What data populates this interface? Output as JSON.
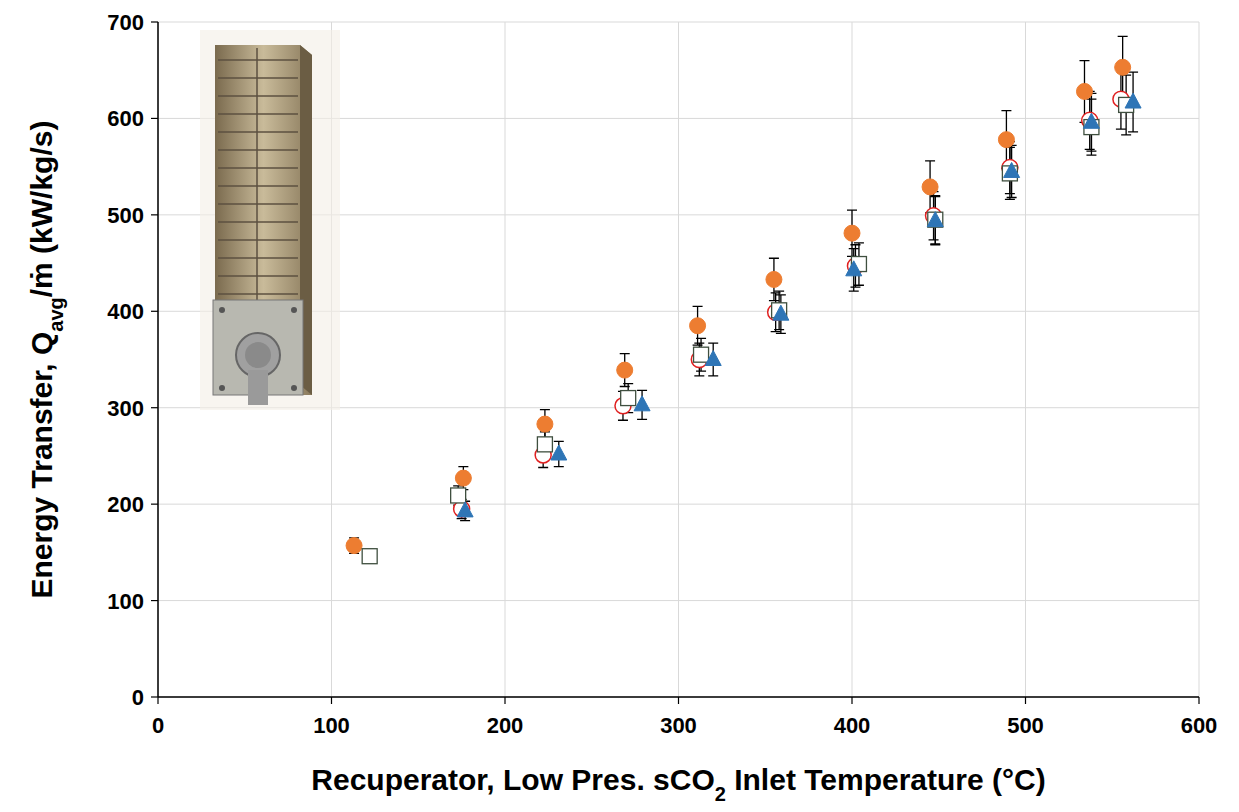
{
  "chart_data": {
    "type": "scatter",
    "xlabel": [
      "Recuperator, Low Pres. sCO",
      "2",
      " Inlet Temperature (°C)"
    ],
    "ylabel": [
      "Energy Transfer, Q",
      "avg",
      "/ṁ (kW/kg/s)"
    ],
    "xlim": [
      0,
      600
    ],
    "xticks": [
      0,
      100,
      200,
      300,
      400,
      500,
      600
    ],
    "ylim": [
      0,
      700
    ],
    "yticks": [
      0,
      100,
      200,
      300,
      400,
      500,
      600,
      700
    ],
    "grid": true,
    "series": [
      {
        "color": "#ed7d31",
        "marker": "circle",
        "x": [
          113,
          176,
          223,
          269,
          311,
          355,
          400,
          445,
          489,
          534,
          556
        ],
        "values": [
          157,
          227,
          283,
          339,
          385,
          433,
          481,
          529,
          578,
          628,
          653
        ],
        "errors": [
          8,
          12,
          15,
          17,
          20,
          22,
          24,
          27,
          30,
          32,
          32
        ]
      },
      {
        "color": "#e02020",
        "marker": "open_circle",
        "x": [
          175,
          222,
          268,
          312,
          356,
          402,
          447,
          491,
          537,
          555
        ],
        "values": [
          195,
          251,
          302,
          350,
          399,
          447,
          499,
          549,
          598,
          620
        ],
        "errors": [
          10,
          13,
          15,
          17,
          20,
          22,
          25,
          27,
          30,
          31
        ]
      },
      {
        "color": "#3f4f3f",
        "marker": "open_square",
        "x": [
          122,
          173,
          223,
          271,
          313,
          358,
          404,
          448,
          491,
          538,
          558
        ],
        "values": [
          146,
          209,
          262,
          310,
          355,
          401,
          449,
          495,
          543,
          591,
          614
        ],
        "errors": [
          7,
          10,
          13,
          15,
          17,
          20,
          22,
          25,
          27,
          29,
          31
        ]
      },
      {
        "color": "#2e75b6",
        "marker": "triangle",
        "x": [
          177,
          231,
          279,
          320,
          359,
          401,
          448,
          492,
          538,
          562
        ],
        "values": [
          193,
          252,
          303,
          350,
          397,
          443,
          494,
          545,
          596,
          617
        ],
        "errors": [
          10,
          13,
          15,
          17,
          20,
          22,
          25,
          27,
          30,
          31
        ]
      }
    ]
  }
}
